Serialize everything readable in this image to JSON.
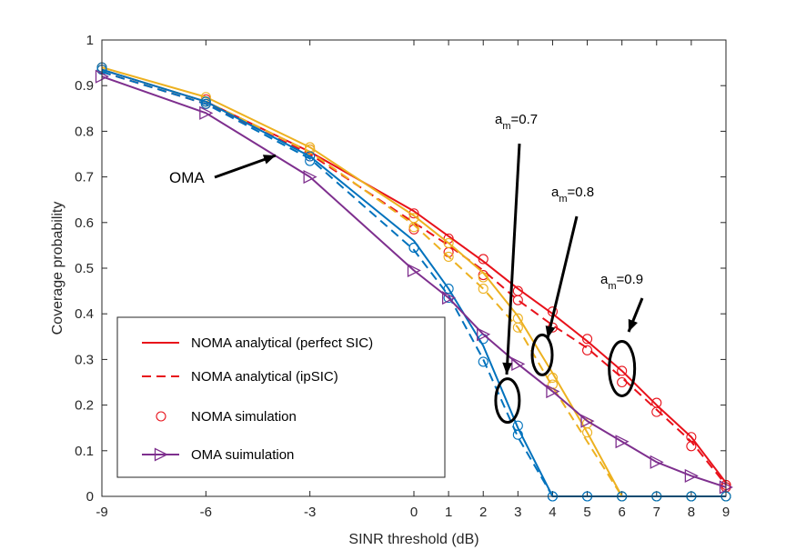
{
  "chart_data": {
    "type": "line",
    "title": "",
    "xlabel": "SINR threshold (dB)",
    "ylabel": "Coverage probability",
    "xlim": [
      -9,
      9
    ],
    "ylim": [
      0,
      1
    ],
    "xticks": [
      -9,
      -6,
      -3,
      0,
      1,
      2,
      3,
      4,
      5,
      6,
      7,
      8,
      9
    ],
    "xtick_labels": [
      "-9",
      "-6",
      "-3",
      "0",
      "1",
      "2",
      "3",
      "4",
      "5",
      "6",
      "7",
      "8",
      "9"
    ],
    "yticks": [
      0,
      0.1,
      0.2,
      0.3,
      0.4,
      0.5,
      0.6,
      0.7,
      0.8,
      0.9,
      1
    ],
    "ytick_labels": [
      "0",
      "0.1",
      "0.2",
      "0.3",
      "0.4",
      "0.5",
      "0.6",
      "0.7",
      "0.8",
      "0.9",
      "1"
    ],
    "x": [
      -9,
      -6,
      -3,
      0,
      1,
      2,
      3,
      4,
      5,
      6,
      7,
      8,
      9
    ],
    "series": [
      {
        "name": "NOMA analytical (perfect SIC), a_m=0.9",
        "group": "a_m=0.9",
        "style": "solid",
        "color": "#e8111a",
        "values": [
          0.935,
          0.865,
          0.755,
          0.625,
          0.57,
          0.515,
          0.455,
          0.4,
          0.34,
          0.275,
          0.2,
          0.13,
          0.03
        ]
      },
      {
        "name": "NOMA analytical (ipSIC), a_m=0.9",
        "group": "a_m=0.9",
        "style": "dashed",
        "color": "#e8111a",
        "values": [
          0.93,
          0.86,
          0.75,
          0.6,
          0.55,
          0.495,
          0.43,
          0.375,
          0.325,
          0.26,
          0.19,
          0.12,
          0.025
        ]
      },
      {
        "name": "NOMA simulation, a_m=0.9",
        "group": "a_m=0.9",
        "style": "markers",
        "color": "#e8111a",
        "values": [
          0.94,
          0.87,
          0.76,
          0.62,
          0.565,
          0.52,
          0.45,
          0.405,
          0.345,
          0.275,
          0.205,
          0.13,
          0.025
        ],
        "values2": [
          0.935,
          0.86,
          0.745,
          0.585,
          0.535,
          0.485,
          0.43,
          0.37,
          0.32,
          0.25,
          0.185,
          0.11,
          0.02
        ]
      },
      {
        "name": "NOMA analytical (perfect SIC), a_m=0.8",
        "group": "a_m=0.8",
        "style": "solid",
        "color": "#edb120",
        "values": [
          0.94,
          0.875,
          0.765,
          0.615,
          0.555,
          0.49,
          0.395,
          0.27,
          0.14,
          0.0,
          0.0,
          0.0,
          0.0
        ]
      },
      {
        "name": "NOMA analytical (ipSIC), a_m=0.8",
        "group": "a_m=0.8",
        "style": "dashed",
        "color": "#edb120",
        "values": [
          0.935,
          0.865,
          0.755,
          0.595,
          0.525,
          0.455,
          0.37,
          0.24,
          0.12,
          0.0,
          0.0,
          0.0,
          0.0
        ]
      },
      {
        "name": "NOMA simulation, a_m=0.8",
        "group": "a_m=0.8",
        "style": "markers",
        "color": "#edb120",
        "values": [
          0.94,
          0.875,
          0.765,
          0.61,
          0.555,
          0.48,
          0.39,
          0.26,
          0.16,
          0.0,
          0.0,
          0.0,
          0.0
        ],
        "values2": [
          0.935,
          0.865,
          0.76,
          0.59,
          0.525,
          0.455,
          0.37,
          0.245,
          0.14,
          0.0,
          0.0,
          0.0,
          0.0
        ]
      },
      {
        "name": "NOMA analytical (perfect SIC), a_m=0.7",
        "group": "a_m=0.7",
        "style": "solid",
        "color": "#0072bd",
        "values": [
          0.935,
          0.865,
          0.745,
          0.56,
          0.455,
          0.33,
          0.15,
          0.0,
          0.0,
          0.0,
          0.0,
          0.0,
          0.0
        ]
      },
      {
        "name": "NOMA analytical (ipSIC), a_m=0.7",
        "group": "a_m=0.7",
        "style": "dashed",
        "color": "#0072bd",
        "values": [
          0.93,
          0.86,
          0.74,
          0.54,
          0.44,
          0.3,
          0.13,
          0.0,
          0.0,
          0.0,
          0.0,
          0.0,
          0.0
        ]
      },
      {
        "name": "NOMA simulation, a_m=0.7",
        "group": "a_m=0.7",
        "style": "markers",
        "color": "#0072bd",
        "values": [
          0.94,
          0.865,
          0.745,
          0.545,
          0.455,
          0.345,
          0.155,
          0.0,
          0.0,
          0.0,
          0.0,
          0.0,
          0.0
        ],
        "values2": [
          0.935,
          0.86,
          0.735,
          0.545,
          0.435,
          0.295,
          0.135,
          0.0,
          0.0,
          0.0,
          0.0,
          0.0,
          0.0
        ]
      },
      {
        "name": "OMA suimulation",
        "group": "OMA",
        "style": "solid-triangles",
        "color": "#7e2f8e",
        "values": [
          0.92,
          0.84,
          0.7,
          0.495,
          0.435,
          0.355,
          0.29,
          0.23,
          0.165,
          0.12,
          0.075,
          0.045,
          0.02
        ]
      }
    ],
    "legend": {
      "placement": "lower-left",
      "entries": [
        {
          "label": "NOMA analytical (perfect SIC)",
          "style": "solid",
          "color": "#e8111a"
        },
        {
          "label": "NOMA analytical (ipSIC)",
          "style": "dashed",
          "color": "#e8111a"
        },
        {
          "label": "NOMA simulation",
          "style": "markers",
          "color": "#e8111a"
        },
        {
          "label": "OMA suimulation",
          "style": "solid-triangles",
          "color": "#7e2f8e"
        }
      ]
    },
    "annotations": [
      {
        "id": "am07",
        "base": "a",
        "sub": "m",
        "value": "=0.7",
        "target_x": 2.7,
        "target_y": 0.21
      },
      {
        "id": "am08",
        "base": "a",
        "sub": "m",
        "value": "=0.8",
        "target_x": 3.7,
        "target_y": 0.31
      },
      {
        "id": "am09",
        "base": "a",
        "sub": "m",
        "value": "=0.9",
        "target_x": 6.0,
        "target_y": 0.28
      },
      {
        "id": "oma",
        "text": "OMA",
        "target_x": -3.5,
        "target_y": 0.75
      }
    ],
    "colors": {
      "axis": "#262626",
      "background": "#ffffff",
      "annotation": "#000000"
    }
  }
}
